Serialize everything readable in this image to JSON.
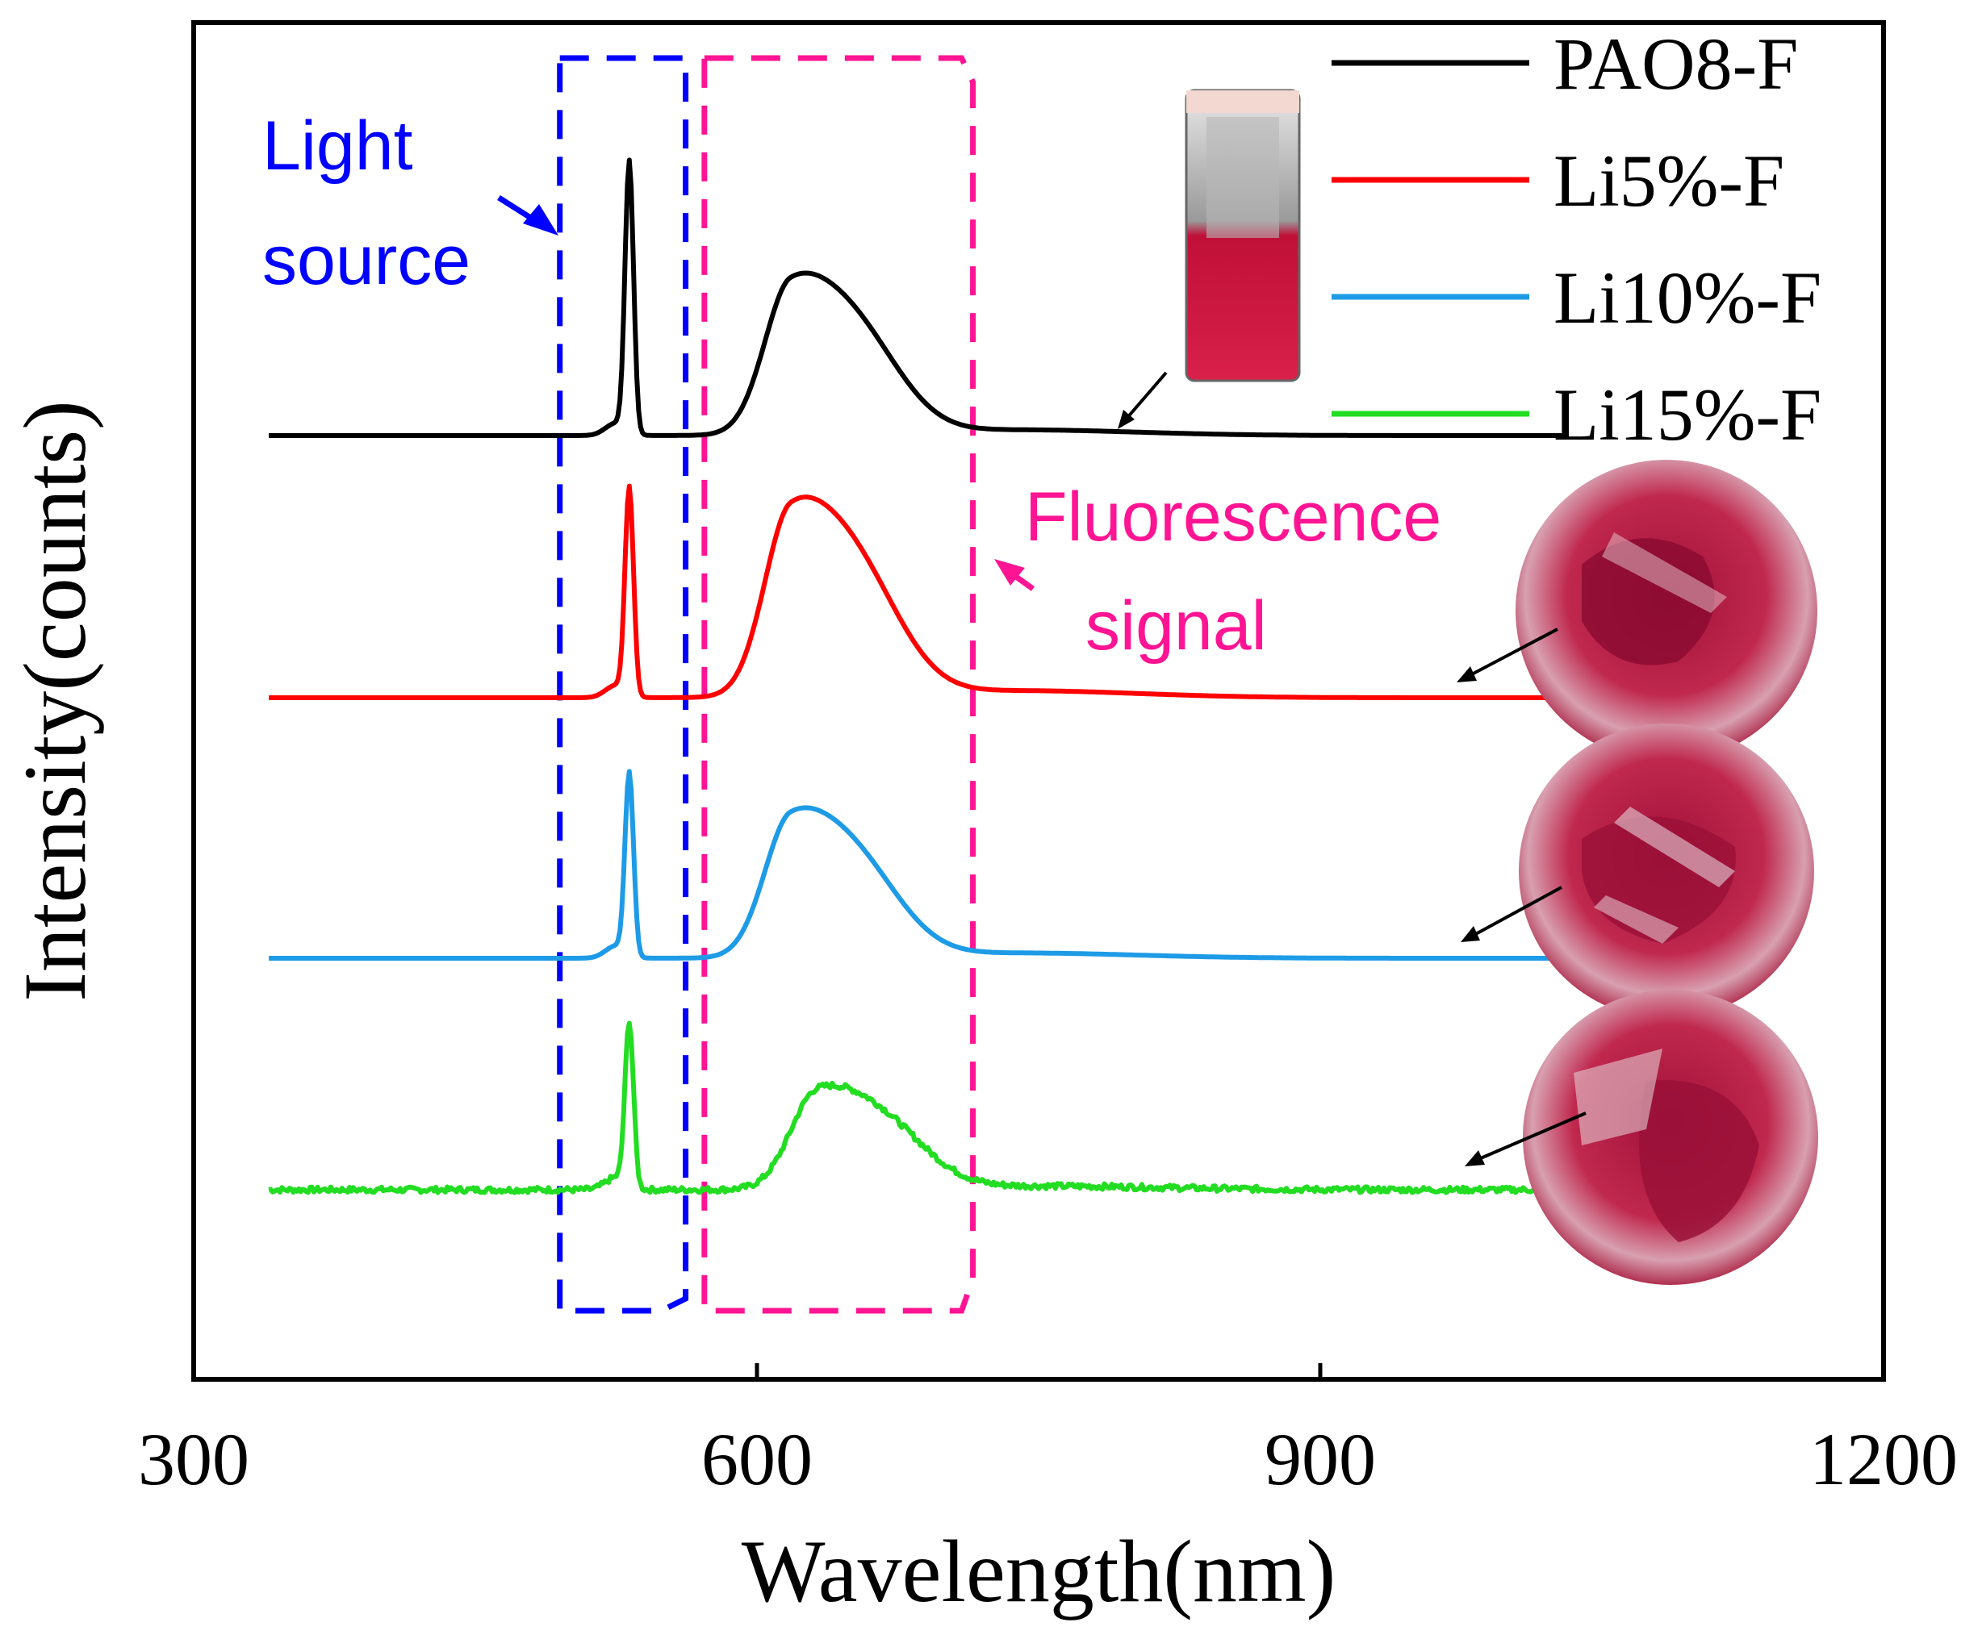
{
  "chart_data": {
    "type": "line",
    "xlabel": "Wavelength(nm)",
    "ylabel": "Intensity(counts)",
    "xlim": [
      300,
      1200
    ],
    "xticks": [
      300,
      600,
      900,
      1200
    ],
    "y_ticks_shown": false,
    "grid": false,
    "legend_position": "top-right",
    "legend_placement": "top-right",
    "stacked_offset": true,
    "series": [
      {
        "name": "PAO8-F",
        "color": "#000000",
        "offset": 0,
        "peak_laser": 7.6,
        "peak_fluor": 4.05,
        "fluor_center": 618,
        "noise": 0
      },
      {
        "name": "Li5%-F",
        "color": "#ff0000",
        "offset": 0,
        "peak_laser": 5.8,
        "peak_fluor": 5.0,
        "fluor_center": 618,
        "noise": 0
      },
      {
        "name": "Li10%-F",
        "color": "#1e9be6",
        "offset": 0,
        "peak_laser": 5.1,
        "peak_fluor": 3.75,
        "fluor_center": 618,
        "noise": 0
      },
      {
        "name": "Li15%-F",
        "color": "#22dd22",
        "offset": 0,
        "peak_laser": 4.6,
        "peak_fluor": 2.6,
        "fluor_center": 632,
        "noise": 0.08
      }
    ],
    "data_range_x": [
      340,
      1030
    ],
    "laser_wavelength": 532,
    "annotations": {
      "light_source": "Light\nsource",
      "fluorescence": "Fluorescence\nsignal"
    },
    "regions": {
      "light_source": [
        495,
        562
      ],
      "fluorescence": [
        572,
        715
      ]
    }
  },
  "labels": {
    "light_line1": "Light",
    "light_line2": "source",
    "fluor_line1": "Fluorescence",
    "fluor_line2": "signal"
  },
  "colors": {
    "light_box": "#0000ff",
    "fluor_box": "#ff1493",
    "sample_pink": "#b41446"
  },
  "icons": [
    "cuvette-photo",
    "sample-dish-photo"
  ]
}
